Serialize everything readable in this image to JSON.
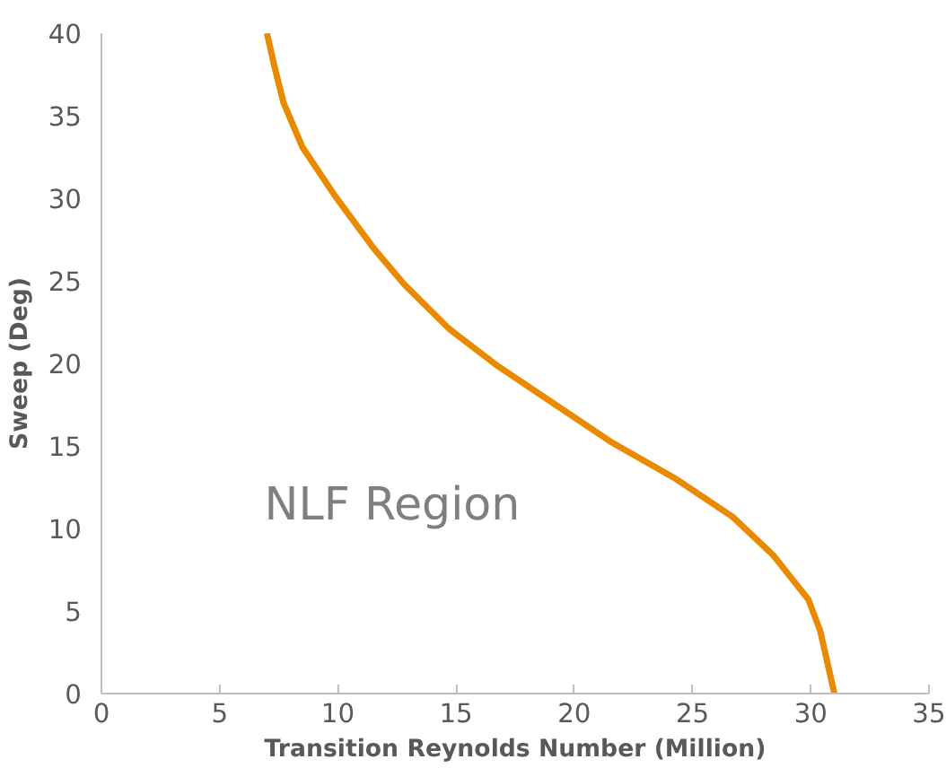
{
  "chart_data": {
    "type": "line",
    "xlabel": "Transition Reynolds Number (Million)",
    "ylabel": "Sweep (Deg)",
    "xlim": [
      0,
      35
    ],
    "xticks": [
      0,
      5,
      10,
      15,
      20,
      25,
      30,
      35
    ],
    "ylim": [
      0,
      40
    ],
    "yticks": [
      0,
      5,
      10,
      15,
      20,
      25,
      30,
      35,
      40
    ],
    "grid": false,
    "marker": "none",
    "line_style": "solid",
    "series": [
      {
        "color": "#ea8a00",
        "x": [
          7.0,
          7.3,
          7.7,
          8.5,
          9.9,
          11.5,
          12.8,
          14.7,
          16.8,
          19.2,
          21.6,
          24.3,
          26.7,
          28.4,
          29.9,
          30.4,
          31.0
        ],
        "values": [
          40,
          38.1,
          35.8,
          33.1,
          30.1,
          27.0,
          24.8,
          22.1,
          19.8,
          17.5,
          15.2,
          13.0,
          10.7,
          8.4,
          5.7,
          3.8,
          0
        ]
      }
    ],
    "annotations": [
      "NLF Region"
    ]
  }
}
